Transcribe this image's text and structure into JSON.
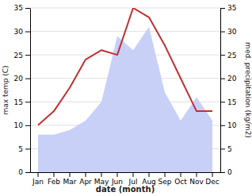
{
  "chart_data": {
    "type": "line",
    "xlabel": "date (month)",
    "ylabel": "max temp (C)",
    "y2label": "med. precipitation (kg/m2)",
    "categories": [
      "Jan",
      "Feb",
      "Mar",
      "Apr",
      "May",
      "Jun",
      "Jul",
      "Aug",
      "Sep",
      "Oct",
      "Nov",
      "Dec"
    ],
    "series": [
      {
        "type": "area",
        "axis": "y2",
        "color": "#c8d0f8",
        "values": [
          8,
          8,
          9,
          11,
          15,
          29,
          26,
          31,
          17,
          11,
          16,
          11
        ]
      },
      {
        "type": "line",
        "color": "#c03030",
        "values": [
          10,
          13,
          18,
          24,
          26,
          25,
          35,
          33,
          27,
          20,
          13,
          13
        ]
      }
    ],
    "ylim": [
      0,
      35
    ],
    "yticks": [
      0,
      5,
      10,
      15,
      20,
      25,
      30,
      35
    ],
    "y2lim": [
      0,
      35
    ],
    "y2ticks": [
      0,
      5,
      10,
      15,
      20,
      25,
      30,
      35
    ],
    "grid": true
  }
}
